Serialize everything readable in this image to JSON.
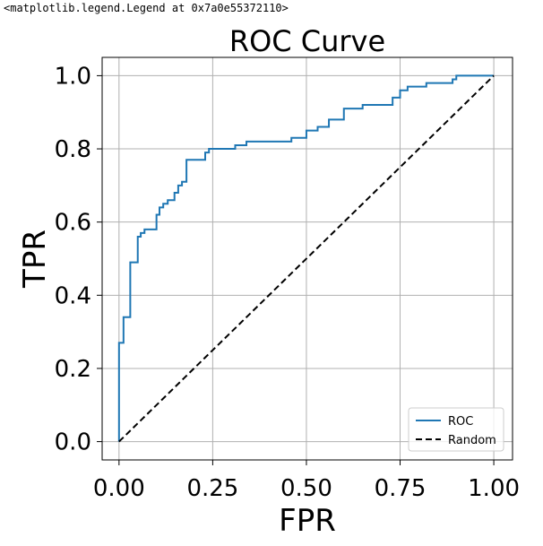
{
  "repr_text": "<matplotlib.legend.Legend at 0x7a0e55372110>",
  "chart_data": {
    "type": "line",
    "title": "ROC Curve",
    "xlabel": "FPR",
    "ylabel": "TPR",
    "xlim": [
      -0.045,
      1.05
    ],
    "ylim": [
      -0.05,
      1.05
    ],
    "xticks": [
      0.0,
      0.25,
      0.5,
      0.75,
      1.0
    ],
    "xtick_labels": [
      "0.00",
      "0.25",
      "0.50",
      "0.75",
      "1.00"
    ],
    "yticks": [
      0.0,
      0.2,
      0.4,
      0.6,
      0.8,
      1.0
    ],
    "ytick_labels": [
      "0.0",
      "0.2",
      "0.4",
      "0.6",
      "0.8",
      "1.0"
    ],
    "grid": true,
    "legend_position": "lower-right",
    "series": [
      {
        "name": "ROC",
        "color": "#1f77b4",
        "style": "solid",
        "x": [
          0.0,
          0.0,
          0.012,
          0.012,
          0.03,
          0.03,
          0.05,
          0.05,
          0.058,
          0.058,
          0.068,
          0.068,
          0.1,
          0.1,
          0.108,
          0.108,
          0.118,
          0.118,
          0.13,
          0.13,
          0.148,
          0.148,
          0.158,
          0.158,
          0.168,
          0.168,
          0.18,
          0.18,
          0.23,
          0.23,
          0.24,
          0.24,
          0.31,
          0.31,
          0.34,
          0.34,
          0.46,
          0.46,
          0.5,
          0.5,
          0.53,
          0.53,
          0.56,
          0.56,
          0.6,
          0.6,
          0.65,
          0.65,
          0.73,
          0.73,
          0.75,
          0.75,
          0.77,
          0.77,
          0.82,
          0.82,
          0.89,
          0.89,
          0.9,
          0.9,
          1.0
        ],
        "y": [
          0.0,
          0.27,
          0.27,
          0.34,
          0.34,
          0.49,
          0.49,
          0.56,
          0.56,
          0.57,
          0.57,
          0.58,
          0.58,
          0.62,
          0.62,
          0.64,
          0.64,
          0.65,
          0.65,
          0.66,
          0.66,
          0.68,
          0.68,
          0.7,
          0.7,
          0.71,
          0.71,
          0.77,
          0.77,
          0.79,
          0.79,
          0.8,
          0.8,
          0.81,
          0.81,
          0.82,
          0.82,
          0.83,
          0.83,
          0.85,
          0.85,
          0.86,
          0.86,
          0.88,
          0.88,
          0.91,
          0.91,
          0.92,
          0.92,
          0.94,
          0.94,
          0.96,
          0.96,
          0.97,
          0.97,
          0.98,
          0.98,
          0.99,
          0.99,
          1.0,
          1.0
        ]
      },
      {
        "name": "Random",
        "color": "#000000",
        "style": "dashed",
        "x": [
          0.0,
          1.0
        ],
        "y": [
          0.0,
          1.0
        ]
      }
    ]
  }
}
